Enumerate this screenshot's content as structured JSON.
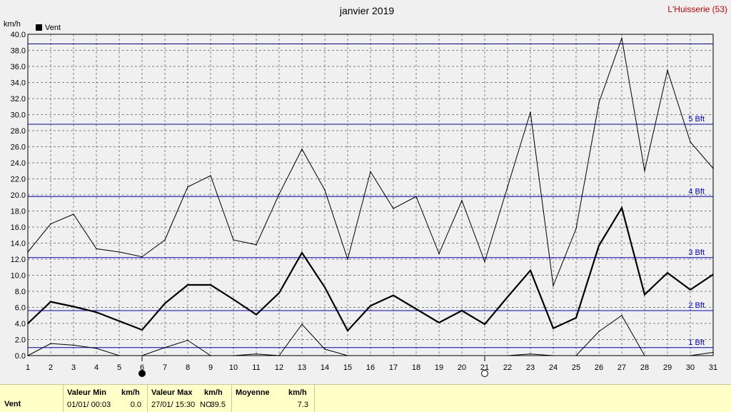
{
  "header": {
    "title": "janvier 2019",
    "station": "L'Huisserie (53)",
    "unit": "km/h",
    "legend_label": "Vent"
  },
  "colors": {
    "background": "#f0f0f0",
    "bft_line": "#0000c0",
    "station": "#c00000",
    "footer_bg": "#ffffc8",
    "series": "#000000"
  },
  "chart_data": {
    "type": "line",
    "title": "janvier 2019",
    "ylabel": "km/h",
    "xlim": [
      1,
      31
    ],
    "ylim": [
      0,
      40
    ],
    "x_ticks": [
      1,
      2,
      3,
      4,
      5,
      6,
      7,
      8,
      9,
      10,
      11,
      12,
      13,
      14,
      15,
      16,
      17,
      18,
      19,
      20,
      21,
      22,
      23,
      24,
      25,
      26,
      27,
      28,
      29,
      30,
      31
    ],
    "y_ticks": [
      "0.0",
      "2.0",
      "4.0",
      "6.0",
      "8.0",
      "10.0",
      "12.0",
      "14.0",
      "16.0",
      "18.0",
      "20.0",
      "22.0",
      "24.0",
      "26.0",
      "28.0",
      "30.0",
      "32.0",
      "34.0",
      "36.0",
      "38.0",
      "40.0"
    ],
    "grid": true,
    "legend": "top-left",
    "series": [
      {
        "name": "Vent",
        "role": "mean",
        "values": [
          4.0,
          6.7,
          6.1,
          5.4,
          4.3,
          3.2,
          6.5,
          8.8,
          8.8,
          7.0,
          5.1,
          7.8,
          12.8,
          8.5,
          3.1,
          6.2,
          7.5,
          5.8,
          4.1,
          5.6,
          3.9,
          7.3,
          10.6,
          3.4,
          4.7,
          13.7,
          18.4,
          7.6,
          10.3,
          8.2,
          10.1
        ]
      },
      {
        "role": "max",
        "values": [
          12.9,
          16.4,
          17.6,
          13.3,
          12.9,
          12.3,
          14.4,
          21.0,
          22.4,
          14.4,
          13.8,
          20.1,
          25.7,
          20.6,
          12.0,
          22.9,
          18.3,
          19.8,
          12.7,
          19.3,
          11.7,
          21.0,
          30.3,
          8.7,
          15.8,
          31.5,
          39.5,
          23.0,
          35.5,
          26.6,
          23.3
        ]
      },
      {
        "role": "min",
        "values": [
          0.0,
          1.5,
          1.3,
          0.9,
          0.0,
          0.0,
          1.0,
          1.9,
          0.0,
          0.0,
          0.2,
          0.0,
          3.9,
          0.8,
          0.0,
          0.0,
          0.0,
          0.0,
          0.0,
          0.0,
          0.0,
          0.0,
          0.2,
          0.0,
          0.0,
          3.0,
          5.0,
          0.0,
          0.0,
          0.0,
          0.4
        ]
      }
    ],
    "beaufort": [
      {
        "label": "1 Bft",
        "value": 1.0
      },
      {
        "label": "2 Bft",
        "value": 5.6
      },
      {
        "label": "3 Bft",
        "value": 12.2
      },
      {
        "label": "4 Bft",
        "value": 19.8
      },
      {
        "label": "5 Bft",
        "value": 28.8
      },
      {
        "label": "",
        "value": 38.8
      }
    ],
    "moon_phases": [
      {
        "day": 6,
        "phase": "new"
      },
      {
        "day": 21,
        "phase": "full"
      }
    ]
  },
  "footer": {
    "series_label": "Vent",
    "min_header": "Valeur Min",
    "min_unit": "km/h",
    "min_date": "01/01/  00:03",
    "min_value": "0.0",
    "max_header": "Valeur Max",
    "max_unit": "km/h",
    "max_date": "27/01/  15:30",
    "max_dir": "NO",
    "max_value": "39.5",
    "avg_header": "Moyenne",
    "avg_unit": "km/h",
    "avg_value": "7.3"
  }
}
